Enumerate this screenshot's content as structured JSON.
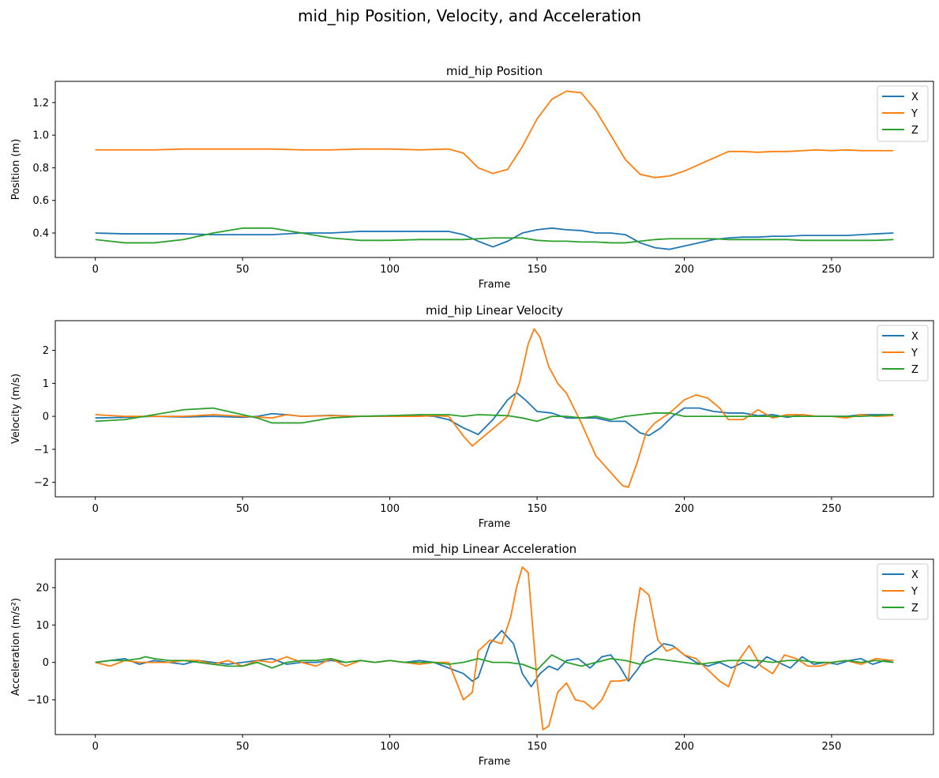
{
  "suptitle": "mid_hip Position, Velocity, and Acceleration",
  "colors": {
    "X": "#1f77b4",
    "Y": "#ff7f0e",
    "Z": "#2ca02c"
  },
  "chart_data": [
    {
      "type": "line",
      "title": "mid_hip Position",
      "xlabel": "Frame",
      "ylabel": "Position (m)",
      "xlim": [
        -13.6,
        284.6
      ],
      "ylim": [
        0.25,
        1.33
      ],
      "xticks": [
        0,
        50,
        100,
        150,
        200,
        250
      ],
      "yticks": [
        0.4,
        0.6,
        0.8,
        1.0,
        1.2
      ],
      "ytick_labels": [
        "0.4",
        "0.6",
        "0.8",
        "1.0",
        "1.2"
      ],
      "legend": "top-right",
      "grid": false,
      "series": [
        {
          "name": "X",
          "color": "#1f77b4",
          "x": [
            0,
            10,
            20,
            30,
            40,
            50,
            60,
            70,
            80,
            90,
            100,
            110,
            120,
            125,
            130,
            135,
            140,
            145,
            150,
            155,
            160,
            165,
            170,
            175,
            180,
            185,
            190,
            195,
            200,
            205,
            210,
            215,
            220,
            225,
            230,
            235,
            240,
            245,
            250,
            255,
            260,
            265,
            271
          ],
          "y": [
            0.4,
            0.395,
            0.395,
            0.395,
            0.39,
            0.39,
            0.39,
            0.4,
            0.4,
            0.41,
            0.41,
            0.41,
            0.41,
            0.39,
            0.35,
            0.315,
            0.35,
            0.4,
            0.42,
            0.43,
            0.42,
            0.415,
            0.4,
            0.4,
            0.39,
            0.34,
            0.31,
            0.3,
            0.32,
            0.34,
            0.36,
            0.37,
            0.375,
            0.375,
            0.38,
            0.38,
            0.385,
            0.385,
            0.385,
            0.385,
            0.39,
            0.395,
            0.4
          ]
        },
        {
          "name": "Y",
          "color": "#ff7f0e",
          "x": [
            0,
            10,
            20,
            30,
            40,
            50,
            60,
            70,
            80,
            90,
            100,
            110,
            120,
            125,
            130,
            135,
            140,
            145,
            150,
            155,
            160,
            165,
            170,
            175,
            180,
            185,
            190,
            195,
            200,
            205,
            210,
            215,
            220,
            225,
            230,
            235,
            240,
            245,
            250,
            255,
            260,
            265,
            271
          ],
          "y": [
            0.91,
            0.91,
            0.91,
            0.915,
            0.915,
            0.915,
            0.915,
            0.91,
            0.91,
            0.915,
            0.915,
            0.91,
            0.915,
            0.89,
            0.8,
            0.765,
            0.79,
            0.93,
            1.1,
            1.22,
            1.27,
            1.26,
            1.15,
            1.0,
            0.85,
            0.76,
            0.74,
            0.75,
            0.78,
            0.82,
            0.86,
            0.9,
            0.9,
            0.895,
            0.9,
            0.9,
            0.905,
            0.91,
            0.905,
            0.91,
            0.905,
            0.905,
            0.905
          ]
        },
        {
          "name": "Z",
          "color": "#2ca02c",
          "x": [
            0,
            10,
            20,
            30,
            40,
            50,
            60,
            70,
            80,
            90,
            100,
            110,
            120,
            125,
            130,
            135,
            140,
            145,
            150,
            155,
            160,
            165,
            170,
            175,
            180,
            185,
            190,
            195,
            200,
            205,
            210,
            215,
            220,
            225,
            230,
            235,
            240,
            245,
            250,
            255,
            260,
            265,
            271
          ],
          "y": [
            0.36,
            0.34,
            0.34,
            0.36,
            0.4,
            0.43,
            0.43,
            0.4,
            0.37,
            0.355,
            0.355,
            0.36,
            0.36,
            0.36,
            0.365,
            0.37,
            0.37,
            0.37,
            0.355,
            0.35,
            0.35,
            0.345,
            0.345,
            0.34,
            0.34,
            0.35,
            0.36,
            0.365,
            0.365,
            0.365,
            0.365,
            0.36,
            0.36,
            0.36,
            0.36,
            0.36,
            0.355,
            0.355,
            0.355,
            0.355,
            0.355,
            0.355,
            0.36
          ]
        }
      ]
    },
    {
      "type": "line",
      "title": "mid_hip Linear Velocity",
      "xlabel": "Frame",
      "ylabel": "Velocity (m/s)",
      "xlim": [
        -13.6,
        284.6
      ],
      "ylim": [
        -2.44,
        2.9
      ],
      "xticks": [
        0,
        50,
        100,
        150,
        200,
        250
      ],
      "yticks": [
        -2,
        -1,
        0,
        1,
        2
      ],
      "ytick_labels": [
        "−2",
        "−1",
        "0",
        "1",
        "2"
      ],
      "legend": "top-right",
      "grid": false,
      "series": [
        {
          "name": "X",
          "color": "#1f77b4",
          "x": [
            0,
            10,
            20,
            30,
            40,
            50,
            55,
            60,
            65,
            70,
            80,
            90,
            100,
            110,
            115,
            120,
            125,
            130,
            135,
            140,
            143,
            146,
            150,
            155,
            160,
            165,
            170,
            175,
            180,
            185,
            188,
            192,
            196,
            200,
            205,
            210,
            215,
            220,
            225,
            230,
            235,
            240,
            245,
            250,
            255,
            260,
            265,
            271
          ],
          "y": [
            -0.05,
            -0.03,
            0.0,
            -0.02,
            0.0,
            -0.03,
            0.0,
            0.08,
            0.05,
            0.0,
            0.03,
            0.0,
            0.02,
            0.02,
            0.0,
            -0.1,
            -0.35,
            -0.55,
            -0.1,
            0.5,
            0.72,
            0.5,
            0.15,
            0.1,
            -0.05,
            -0.05,
            -0.05,
            -0.15,
            -0.15,
            -0.5,
            -0.58,
            -0.35,
            0.0,
            0.25,
            0.25,
            0.15,
            0.1,
            0.1,
            0.02,
            0.05,
            -0.03,
            0.05,
            0.0,
            0.0,
            0.0,
            0.05,
            0.05,
            0.05
          ]
        },
        {
          "name": "Y",
          "color": "#ff7f0e",
          "x": [
            0,
            10,
            20,
            30,
            40,
            50,
            55,
            60,
            65,
            70,
            80,
            90,
            100,
            110,
            115,
            120,
            125,
            128,
            132,
            136,
            140,
            144,
            147,
            149,
            151,
            154,
            157,
            160,
            165,
            170,
            175,
            179,
            181,
            184,
            187,
            190,
            195,
            200,
            204,
            208,
            212,
            215,
            220,
            225,
            230,
            235,
            240,
            245,
            250,
            255,
            260,
            265,
            271
          ],
          "y": [
            0.05,
            0.0,
            0.0,
            0.0,
            0.05,
            0.0,
            -0.02,
            -0.05,
            0.05,
            0.0,
            0.02,
            0.0,
            0.0,
            0.0,
            0.02,
            0.0,
            -0.6,
            -0.9,
            -0.6,
            -0.3,
            0.0,
            1.0,
            2.2,
            2.65,
            2.4,
            1.5,
            1.0,
            0.7,
            -0.2,
            -1.2,
            -1.7,
            -2.1,
            -2.15,
            -1.4,
            -0.5,
            -0.2,
            0.1,
            0.5,
            0.65,
            0.55,
            0.25,
            -0.1,
            -0.1,
            0.2,
            -0.05,
            0.05,
            0.05,
            0.0,
            0.0,
            -0.05,
            0.05,
            0.0,
            0.02
          ]
        },
        {
          "name": "Z",
          "color": "#2ca02c",
          "x": [
            0,
            10,
            20,
            30,
            40,
            45,
            50,
            55,
            60,
            65,
            70,
            80,
            90,
            100,
            110,
            120,
            125,
            130,
            140,
            145,
            150,
            155,
            160,
            165,
            170,
            175,
            180,
            185,
            190,
            195,
            200,
            210,
            220,
            230,
            240,
            250,
            260,
            271
          ],
          "y": [
            -0.15,
            -0.1,
            0.05,
            0.2,
            0.25,
            0.15,
            0.05,
            -0.05,
            -0.2,
            -0.2,
            -0.2,
            -0.05,
            0.0,
            0.02,
            0.05,
            0.05,
            0.0,
            0.05,
            0.02,
            -0.05,
            -0.15,
            0.0,
            0.0,
            -0.05,
            0.0,
            -0.1,
            0.0,
            0.05,
            0.1,
            0.1,
            0.0,
            0.0,
            0.0,
            0.0,
            0.0,
            0.0,
            0.0,
            0.05
          ]
        }
      ]
    },
    {
      "type": "line",
      "title": "mid_hip Linear Acceleration",
      "xlabel": "Frame",
      "ylabel": "Acceleration (m/s²)",
      "xlim": [
        -13.6,
        284.6
      ],
      "ylim": [
        -19.3,
        27.6
      ],
      "xticks": [
        0,
        50,
        100,
        150,
        200,
        250
      ],
      "yticks": [
        -10,
        0,
        10,
        20
      ],
      "ytick_labels": [
        "−10",
        "0",
        "10",
        "20"
      ],
      "legend": "top-right",
      "grid": false,
      "series": [
        {
          "name": "X",
          "color": "#1f77b4",
          "x": [
            0,
            5,
            10,
            15,
            20,
            25,
            30,
            35,
            40,
            45,
            50,
            55,
            60,
            65,
            70,
            75,
            80,
            85,
            90,
            95,
            100,
            105,
            110,
            115,
            120,
            125,
            128,
            130,
            134,
            138,
            142,
            145,
            148,
            151,
            154,
            157,
            160,
            164,
            168,
            172,
            175,
            178,
            181,
            184,
            187,
            190,
            193,
            196,
            200,
            204,
            208,
            212,
            216,
            220,
            224,
            228,
            232,
            236,
            240,
            244,
            248,
            252,
            256,
            260,
            264,
            268,
            271
          ],
          "y": [
            0.0,
            0.5,
            1.0,
            -0.5,
            0.5,
            0.0,
            -0.5,
            0.5,
            0.0,
            -0.5,
            0.0,
            0.5,
            1.0,
            -0.5,
            0.0,
            0.0,
            0.5,
            0.0,
            0.5,
            0.0,
            0.5,
            0.0,
            0.5,
            0.0,
            -1.5,
            -3.0,
            -5.0,
            -4.0,
            5.0,
            8.5,
            5.0,
            -3.0,
            -6.5,
            -3.0,
            -1.0,
            -2.0,
            0.5,
            1.0,
            -1.5,
            1.5,
            2.0,
            -1.0,
            -5.0,
            -2.0,
            1.5,
            3.0,
            5.0,
            4.5,
            2.0,
            0.0,
            -1.0,
            0.0,
            -1.5,
            0.0,
            -1.5,
            1.5,
            0.0,
            -1.5,
            1.5,
            -0.5,
            0.0,
            -0.5,
            0.5,
            1.0,
            -0.5,
            0.5,
            0.0
          ]
        },
        {
          "name": "Y",
          "color": "#ff7f0e",
          "x": [
            0,
            5,
            10,
            15,
            20,
            25,
            30,
            35,
            40,
            45,
            50,
            55,
            60,
            65,
            70,
            75,
            80,
            85,
            90,
            95,
            100,
            105,
            110,
            115,
            120,
            125,
            128,
            130,
            134,
            138,
            141,
            143,
            145,
            147,
            150,
            152,
            154,
            157,
            160,
            163,
            166,
            169,
            172,
            175,
            178,
            181,
            183,
            185,
            188,
            191,
            194,
            197,
            200,
            204,
            208,
            212,
            215,
            218,
            222,
            226,
            230,
            234,
            238,
            242,
            246,
            250,
            255,
            260,
            265,
            271
          ],
          "y": [
            0.0,
            -1.0,
            0.5,
            0.0,
            0.0,
            0.0,
            0.5,
            0.5,
            -0.5,
            0.5,
            -1.0,
            0.5,
            0.0,
            1.5,
            0.0,
            -1.0,
            1.0,
            -1.0,
            0.5,
            0.0,
            0.5,
            0.0,
            -0.5,
            0.0,
            0.0,
            -10.0,
            -8.0,
            3.0,
            6.0,
            5.0,
            12.0,
            20.0,
            25.5,
            24.0,
            -5.0,
            -18.0,
            -17.0,
            -8.0,
            -5.5,
            -10.0,
            -10.5,
            -12.5,
            -10.0,
            -5.0,
            -5.0,
            -4.5,
            10.0,
            20.0,
            18.0,
            6.0,
            3.0,
            4.0,
            2.0,
            1.0,
            -2.0,
            -5.0,
            -6.5,
            0.0,
            4.5,
            -1.0,
            -3.0,
            2.0,
            1.0,
            -1.0,
            -1.0,
            0.0,
            0.5,
            -0.5,
            1.0,
            0.5
          ]
        },
        {
          "name": "Z",
          "color": "#2ca02c",
          "x": [
            0,
            5,
            10,
            15,
            17,
            20,
            25,
            30,
            35,
            40,
            45,
            50,
            55,
            60,
            65,
            70,
            75,
            80,
            85,
            90,
            95,
            100,
            105,
            110,
            115,
            120,
            125,
            130,
            135,
            140,
            145,
            150,
            155,
            160,
            165,
            170,
            175,
            180,
            185,
            190,
            195,
            200,
            205,
            210,
            215,
            220,
            225,
            230,
            235,
            240,
            245,
            250,
            255,
            260,
            265,
            271
          ],
          "y": [
            0.0,
            0.5,
            0.5,
            1.0,
            1.5,
            1.0,
            0.5,
            0.5,
            0.0,
            -0.5,
            -1.0,
            -1.0,
            0.0,
            -1.5,
            0.0,
            0.5,
            0.5,
            1.0,
            0.0,
            0.5,
            0.0,
            0.5,
            0.0,
            0.0,
            0.0,
            -0.5,
            0.0,
            1.0,
            0.0,
            0.0,
            -0.5,
            -2.0,
            2.0,
            0.0,
            -1.0,
            0.0,
            1.0,
            0.5,
            -0.5,
            1.0,
            0.5,
            0.0,
            -0.5,
            0.0,
            0.5,
            0.5,
            0.5,
            0.0,
            0.5,
            0.5,
            0.0,
            0.0,
            0.5,
            0.0,
            0.5,
            0.0
          ]
        }
      ]
    }
  ]
}
